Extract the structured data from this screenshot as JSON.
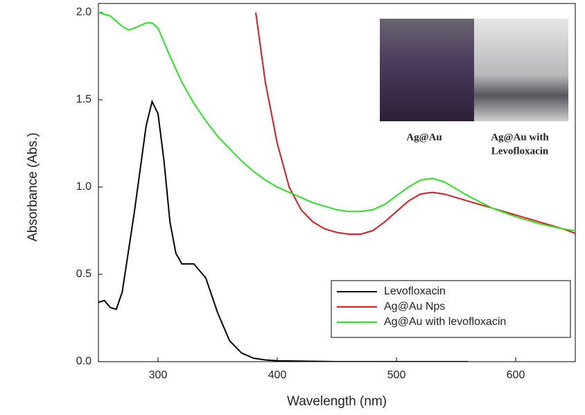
{
  "chart_data": {
    "type": "line",
    "x_label": "Wavelength (nm)",
    "y_label": "Absorbance (Abs.)",
    "xlim": [
      250,
      650
    ],
    "ylim": [
      0,
      2
    ],
    "xticks": [
      300,
      400,
      500,
      600
    ],
    "yticks": [
      {
        "value": 0,
        "label": "0.0"
      },
      {
        "value": 0.5,
        "label": "0.5"
      },
      {
        "value": 1,
        "label": "1.0"
      },
      {
        "value": 1.5,
        "label": "1.5"
      },
      {
        "value": 2,
        "label": "2.0"
      }
    ],
    "legend": "lower right",
    "annotations": [
      "Ag@Au",
      "Ag@Au with",
      "Levofloxacin"
    ],
    "series": [
      {
        "name": "Levofloxacin",
        "color": "#000000",
        "x": [
          250,
          255,
          260,
          265,
          270,
          280,
          290,
          295,
          300,
          305,
          310,
          315,
          320,
          325,
          330,
          340,
          350,
          360,
          370,
          380,
          390,
          400,
          450,
          500,
          560
        ],
        "values": [
          0.34,
          0.35,
          0.31,
          0.3,
          0.4,
          0.85,
          1.35,
          1.49,
          1.42,
          1.15,
          0.8,
          0.62,
          0.56,
          0.56,
          0.56,
          0.48,
          0.28,
          0.12,
          0.05,
          0.02,
          0.01,
          0.005,
          0,
          0,
          0
        ]
      },
      {
        "name": "Ag@Au Nps",
        "color": "#e8141c",
        "x": [
          382,
          390,
          400,
          410,
          420,
          430,
          440,
          450,
          460,
          470,
          480,
          490,
          500,
          510,
          520,
          530,
          540,
          550,
          560,
          580,
          600,
          620,
          640,
          650
        ],
        "values": [
          2.0,
          1.6,
          1.25,
          1.0,
          0.87,
          0.8,
          0.76,
          0.74,
          0.73,
          0.73,
          0.75,
          0.8,
          0.86,
          0.92,
          0.96,
          0.97,
          0.96,
          0.94,
          0.92,
          0.88,
          0.84,
          0.8,
          0.76,
          0.735
        ]
      },
      {
        "name": "Ag@Au with levofloxacin",
        "color": "#22e81c",
        "x": [
          250,
          260,
          270,
          275,
          280,
          290,
          295,
          300,
          310,
          320,
          330,
          340,
          350,
          360,
          370,
          380,
          390,
          400,
          410,
          420,
          430,
          440,
          450,
          460,
          470,
          480,
          490,
          500,
          510,
          520,
          530,
          540,
          550,
          560,
          580,
          600,
          620,
          640,
          650
        ],
        "values": [
          2.0,
          1.98,
          1.92,
          1.9,
          1.91,
          1.94,
          1.94,
          1.91,
          1.75,
          1.6,
          1.48,
          1.38,
          1.29,
          1.22,
          1.15,
          1.09,
          1.04,
          1.0,
          0.97,
          0.94,
          0.91,
          0.89,
          0.87,
          0.86,
          0.86,
          0.87,
          0.9,
          0.95,
          1.0,
          1.04,
          1.05,
          1.03,
          0.99,
          0.95,
          0.88,
          0.83,
          0.79,
          0.76,
          0.75
        ]
      }
    ]
  }
}
